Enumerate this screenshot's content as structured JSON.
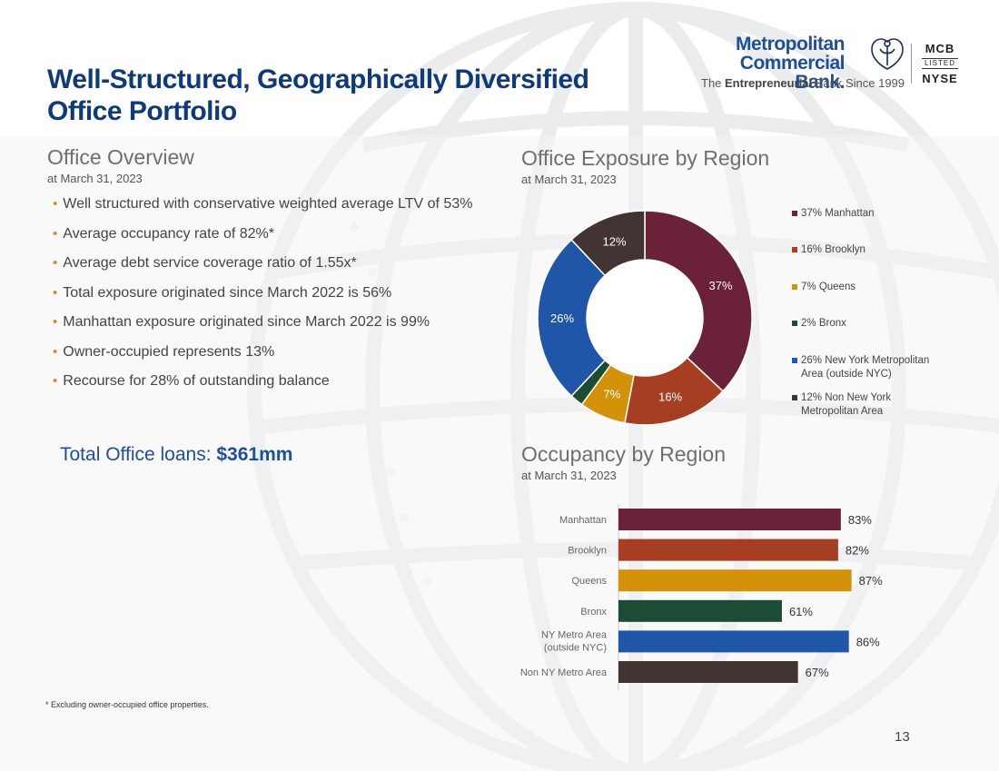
{
  "header": {
    "title_line1": "Well-Structured, Geographically Diversified",
    "title_line2": "Office Portfolio"
  },
  "logo": {
    "name_line1": "Metropolitan",
    "name_line2": "Commercial Bank.",
    "tag_pre": "The ",
    "tag_bold": "Entrepreneurial",
    "tag_post": " Bank Since 1999",
    "ticker": "MCB",
    "listed": "LISTED",
    "exchange": "NYSE"
  },
  "overview": {
    "title": "Office  Overview",
    "subtitle": "at March 31, 2023",
    "bullets": [
      "Well structured with conservative weighted average LTV of 53%",
      "Average occupancy rate of 82%*",
      "Average debt service coverage ratio of 1.55x*",
      "Total exposure originated since March 2022 is 56%",
      "Manhattan exposure originated since March 2022 is 99%",
      "Owner-occupied represents 13%",
      "Recourse for 28% of outstanding balance"
    ],
    "total_label": "Total Office loans: ",
    "total_value": "$361mm"
  },
  "exposure": {
    "title": "Office Exposure by Region",
    "subtitle": "at March 31, 2023"
  },
  "occupancy": {
    "title": "Occupancy by Region",
    "subtitle": "at March 31, 2023"
  },
  "footnote": "* Excluding owner-occupied office properties.",
  "page_number": "13",
  "chart_data": [
    {
      "type": "pie",
      "title": "Office Exposure by Region",
      "subtitle": "at March 31, 2023",
      "donut": true,
      "labels": [
        "Manhattan",
        "Brooklyn",
        "Queens",
        "Bronx",
        "New York Metropolitan Area (outside NYC)",
        "Non New York Metropolitan Area"
      ],
      "values": [
        37,
        16,
        7,
        2,
        26,
        12
      ],
      "data_labels": [
        "37%",
        "16%",
        "7%",
        "",
        "26%",
        "12%"
      ],
      "legend": [
        {
          "line1": "37% Manhattan",
          "line2": ""
        },
        {
          "line1": "16% Brooklyn",
          "line2": ""
        },
        {
          "line1": "7% Queens",
          "line2": ""
        },
        {
          "line1": "2% Bronx",
          "line2": ""
        },
        {
          "line1": "26% New York Metropolitan",
          "line2": "Area (outside NYC)"
        },
        {
          "line1": "12% Non New York",
          "line2": "Metropolitan Area"
        }
      ],
      "legend_position": "right",
      "colors": [
        "#6b2238",
        "#a63f22",
        "#d4920a",
        "#1c4c35",
        "#1f56a8",
        "#433434"
      ]
    },
    {
      "type": "bar",
      "orientation": "horizontal",
      "title": "Occupancy by Region",
      "subtitle": "at March 31, 2023",
      "categories": [
        {
          "line1": "Manhattan",
          "line2": ""
        },
        {
          "line1": "Brooklyn",
          "line2": ""
        },
        {
          "line1": "Queens",
          "line2": ""
        },
        {
          "line1": "Bronx",
          "line2": ""
        },
        {
          "line1": "NY Metro Area",
          "line2": "(outside NYC)"
        },
        {
          "line1": "Non NY Metro Area",
          "line2": ""
        }
      ],
      "values": [
        83,
        82,
        87,
        61,
        86,
        67
      ],
      "data_labels": [
        "83%",
        "82%",
        "87%",
        "61%",
        "86%",
        "67%"
      ],
      "xlim": [
        0,
        100
      ],
      "colors": [
        "#6b2238",
        "#a63f22",
        "#d4920a",
        "#1c4c35",
        "#1f56a8",
        "#433434"
      ]
    }
  ]
}
